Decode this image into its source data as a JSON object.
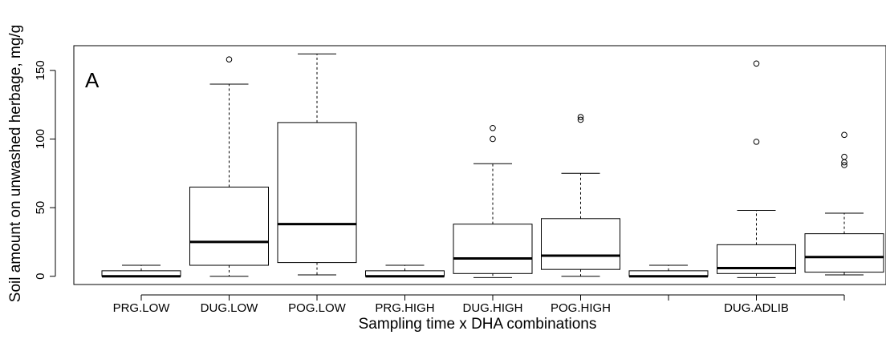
{
  "chart_data": {
    "type": "boxplot",
    "panel_label": "A",
    "xlabel": "Sampling time x DHA combinations",
    "ylabel": "Soil amount on unwashed herbage, mg/g",
    "ylim": [
      -6,
      168
    ],
    "yticks": [
      0,
      50,
      100,
      150
    ],
    "categories": [
      "PRG.LOW",
      "DUG.LOW",
      "POG.LOW",
      "PRG.HIGH",
      "DUG.HIGH",
      "POG.HIGH",
      "",
      "DUG.ADLIB",
      ""
    ],
    "boxes": [
      {
        "category": "PRG.LOW",
        "whisker_low": 0,
        "q1": 0,
        "median": 0,
        "q3": 4,
        "whisker_high": 8,
        "outliers": []
      },
      {
        "category": "DUG.LOW",
        "whisker_low": 0,
        "q1": 8,
        "median": 25,
        "q3": 65,
        "whisker_high": 140,
        "outliers": [
          158
        ]
      },
      {
        "category": "POG.LOW",
        "whisker_low": 1,
        "q1": 10,
        "median": 38,
        "q3": 112,
        "whisker_high": 162,
        "outliers": []
      },
      {
        "category": "PRG.HIGH",
        "whisker_low": 0,
        "q1": 0,
        "median": 0,
        "q3": 4,
        "whisker_high": 8,
        "outliers": []
      },
      {
        "category": "DUG.HIGH",
        "whisker_low": -1,
        "q1": 2,
        "median": 13,
        "q3": 38,
        "whisker_high": 82,
        "outliers": [
          100,
          108
        ]
      },
      {
        "category": "POG.HIGH",
        "whisker_low": 0,
        "q1": 5,
        "median": 15,
        "q3": 42,
        "whisker_high": 75,
        "outliers": [
          114,
          116
        ]
      },
      {
        "category": "",
        "whisker_low": 0,
        "q1": 0,
        "median": 0,
        "q3": 4,
        "whisker_high": 8,
        "outliers": []
      },
      {
        "category": "DUG.ADLIB",
        "whisker_low": -1,
        "q1": 2,
        "median": 6,
        "q3": 23,
        "whisker_high": 48,
        "outliers": [
          98,
          155
        ]
      },
      {
        "category": "",
        "whisker_low": 1,
        "q1": 3,
        "median": 14,
        "q3": 31,
        "whisker_high": 46,
        "outliers": [
          81,
          83,
          87,
          103
        ]
      }
    ]
  }
}
